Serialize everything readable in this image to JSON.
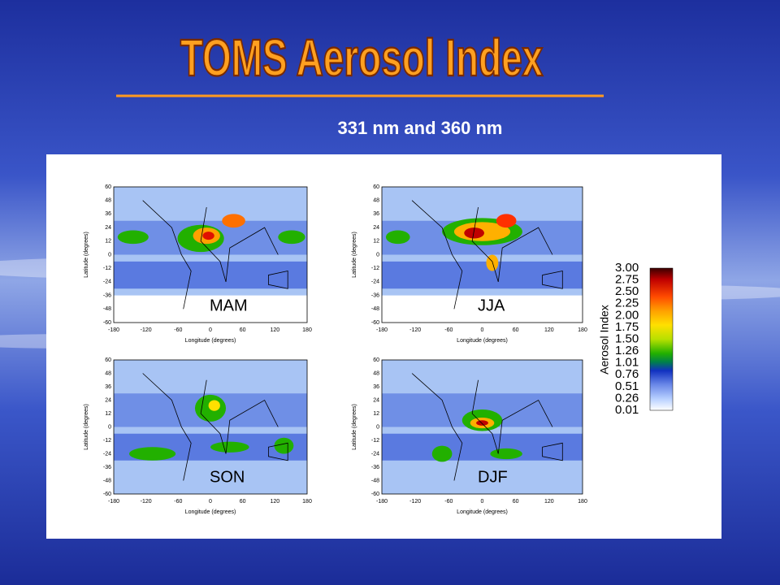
{
  "header": {
    "title": "TOMS Aerosol Index",
    "subtitle": "331 nm and 360 nm"
  },
  "panels": [
    {
      "label": "MAM",
      "x_label": "Longitude (degrees)",
      "y_label": "Latitude (degrees)",
      "xticks": [
        "-180",
        "-120",
        "-60",
        "0",
        "60",
        "120",
        "180"
      ],
      "yticks": [
        "60",
        "48",
        "36",
        "24",
        "12",
        "0",
        "-12",
        "-24",
        "-36",
        "-48",
        "-60"
      ]
    },
    {
      "label": "JJA",
      "x_label": "Longitude (degrees)",
      "y_label": "Latitude (degrees)",
      "xticks": [
        "-180",
        "-120",
        "-60",
        "0",
        "60",
        "120",
        "180"
      ],
      "yticks": [
        "60",
        "48",
        "36",
        "24",
        "12",
        "0",
        "-12",
        "-24",
        "-36",
        "-48",
        "-60"
      ]
    },
    {
      "label": "SON",
      "x_label": "Longitude (degrees)",
      "y_label": "Latitude (degrees)",
      "xticks": [
        "-180",
        "-120",
        "-60",
        "0",
        "60",
        "120",
        "180"
      ],
      "yticks": [
        "60",
        "48",
        "36",
        "24",
        "12",
        "0",
        "-12",
        "-24",
        "-36",
        "-48",
        "-60"
      ]
    },
    {
      "label": "DJF",
      "x_label": "Longitude (degrees)",
      "y_label": "Latitude (degrees)",
      "xticks": [
        "-180",
        "-120",
        "-60",
        "0",
        "60",
        "120",
        "180"
      ],
      "yticks": [
        "60",
        "48",
        "36",
        "24",
        "12",
        "0",
        "-12",
        "-24",
        "-36",
        "-48",
        "-60"
      ]
    }
  ],
  "colorbar": {
    "label": "Aerosol Index",
    "ticks": [
      "3.00",
      "2.75",
      "2.50",
      "2.25",
      "2.00",
      "1.75",
      "1.50",
      "1.26",
      "1.01",
      "0.76",
      "0.51",
      "0.26",
      "0.01"
    ]
  }
}
